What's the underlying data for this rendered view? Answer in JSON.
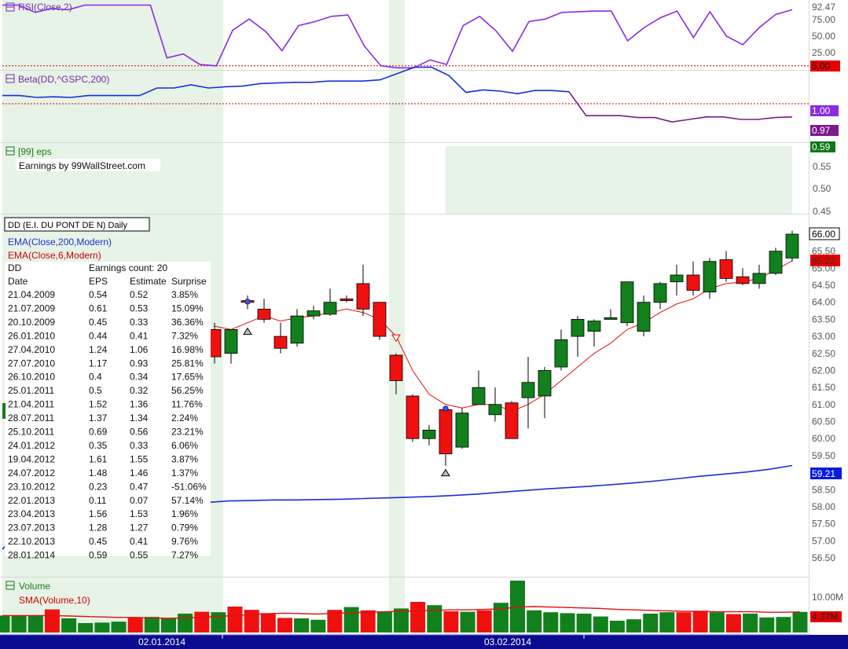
{
  "chart_data": {
    "type": "candlestick",
    "title": "DD (E.I. DU PONT DE N) Daily",
    "x_axis": {
      "labels": [
        "02.01.2014",
        "03.02.2014"
      ]
    },
    "bars": [
      {
        "o": 63.2,
        "h": 63.4,
        "l": 62.2,
        "c": 62.4
      },
      {
        "o": 62.5,
        "h": 63.2,
        "l": 62.2,
        "c": 63.2
      },
      {
        "o": 64.05,
        "h": 64.2,
        "l": 63.8,
        "c": 64.0
      },
      {
        "o": 63.8,
        "h": 64.1,
        "l": 63.4,
        "c": 63.5
      },
      {
        "o": 63.0,
        "h": 63.4,
        "l": 62.5,
        "c": 62.65
      },
      {
        "o": 62.8,
        "h": 63.8,
        "l": 62.7,
        "c": 63.6
      },
      {
        "o": 63.6,
        "h": 63.9,
        "l": 63.5,
        "c": 63.75
      },
      {
        "o": 63.65,
        "h": 64.4,
        "l": 63.6,
        "c": 64.0
      },
      {
        "o": 64.1,
        "h": 64.2,
        "l": 64.0,
        "c": 64.05
      },
      {
        "o": 64.55,
        "h": 65.1,
        "l": 63.6,
        "c": 63.8
      },
      {
        "o": 64.0,
        "h": 64.0,
        "l": 62.9,
        "c": 63.0
      },
      {
        "o": 62.45,
        "h": 62.5,
        "l": 61.3,
        "c": 61.7
      },
      {
        "o": 61.25,
        "h": 61.3,
        "l": 59.9,
        "c": 60.0
      },
      {
        "o": 60.0,
        "h": 60.4,
        "l": 59.8,
        "c": 60.25
      },
      {
        "o": 60.85,
        "h": 60.9,
        "l": 59.2,
        "c": 59.55
      },
      {
        "o": 59.75,
        "h": 60.9,
        "l": 59.7,
        "c": 60.75
      },
      {
        "o": 61.0,
        "h": 62.0,
        "l": 61.0,
        "c": 61.5
      },
      {
        "o": 60.7,
        "h": 61.5,
        "l": 60.5,
        "c": 61.0
      },
      {
        "o": 61.05,
        "h": 61.1,
        "l": 60.0,
        "c": 60.0
      },
      {
        "o": 61.2,
        "h": 62.4,
        "l": 60.3,
        "c": 61.65
      },
      {
        "o": 61.25,
        "h": 62.1,
        "l": 60.6,
        "c": 62.0
      },
      {
        "o": 62.1,
        "h": 63.2,
        "l": 62.0,
        "c": 62.9
      },
      {
        "o": 63.0,
        "h": 63.6,
        "l": 62.4,
        "c": 63.5
      },
      {
        "o": 63.15,
        "h": 63.5,
        "l": 62.7,
        "c": 63.45
      },
      {
        "o": 63.5,
        "h": 63.8,
        "l": 63.5,
        "c": 63.55
      },
      {
        "o": 63.4,
        "h": 64.6,
        "l": 63.3,
        "c": 64.6
      },
      {
        "o": 63.15,
        "h": 64.2,
        "l": 63.0,
        "c": 64.0
      },
      {
        "o": 64.0,
        "h": 64.6,
        "l": 63.8,
        "c": 64.55
      },
      {
        "o": 64.6,
        "h": 65.1,
        "l": 64.2,
        "c": 64.8
      },
      {
        "o": 64.8,
        "h": 65.2,
        "l": 64.2,
        "c": 64.35
      },
      {
        "o": 64.3,
        "h": 65.3,
        "l": 64.1,
        "c": 65.2
      },
      {
        "o": 65.25,
        "h": 65.5,
        "l": 64.6,
        "c": 64.7
      },
      {
        "o": 64.75,
        "h": 65.0,
        "l": 64.5,
        "c": 64.55
      },
      {
        "o": 64.55,
        "h": 65.1,
        "l": 64.4,
        "c": 64.85
      },
      {
        "o": 64.85,
        "h": 65.6,
        "l": 64.8,
        "c": 65.5
      },
      {
        "o": 65.3,
        "h": 66.1,
        "l": 65.2,
        "c": 66.0
      }
    ],
    "ema6": {
      "name": "EMA(Close,6,Modern)",
      "last": "65.22",
      "values": [
        63.3,
        63.2,
        63.4,
        63.6,
        63.45,
        63.55,
        63.6,
        63.7,
        63.8,
        63.7,
        63.5,
        63.0,
        62.0,
        61.3,
        61.0,
        60.9,
        61.0,
        61.0,
        60.8,
        61.0,
        61.3,
        61.7,
        62.1,
        62.5,
        62.8,
        63.2,
        63.4,
        63.7,
        63.95,
        64.1,
        64.4,
        64.55,
        64.6,
        64.7,
        64.95,
        65.22
      ]
    },
    "ema200": {
      "name": "EMA(Close,200,Modern)",
      "last": "59.21",
      "values": [
        56.75,
        57.5,
        57.62,
        57.72,
        57.8,
        57.88,
        57.95,
        58.02,
        58.08,
        58.12,
        58.17,
        58.18,
        58.2,
        58.2,
        58.21,
        58.22,
        58.24,
        58.26,
        58.28,
        58.3,
        58.33,
        58.37,
        58.42,
        58.47,
        58.52,
        58.56,
        58.6,
        58.65,
        58.7,
        58.76,
        58.83,
        58.9,
        58.96,
        59.02,
        59.1,
        59.21
      ]
    },
    "price_axis": {
      "min": 56.5,
      "max": 66.0,
      "ticks": [
        "56.50",
        "57.00",
        "57.50",
        "58.00",
        "58.50",
        "59.00",
        "59.50",
        "60.00",
        "60.50",
        "61.00",
        "61.50",
        "62.00",
        "62.50",
        "63.00",
        "63.50",
        "64.00",
        "64.50",
        "65.00",
        "65.50",
        "66.00"
      ],
      "last": "66.00"
    },
    "signals": [
      {
        "i": 2,
        "v": 64.02,
        "shape": "circle"
      },
      {
        "i": 2,
        "v": 63.15,
        "shape": "up"
      },
      {
        "i": 11,
        "v": 62.95,
        "shape": "down"
      },
      {
        "i": 14,
        "v": 60.88,
        "shape": "circle"
      },
      {
        "i": 14,
        "v": 59.0,
        "shape": "up"
      }
    ],
    "earnings_table": {
      "symbol": "DD",
      "count_label": "Earnings count: 20",
      "columns": [
        "Date",
        "EPS",
        "Estimate",
        "Surprise"
      ],
      "rows": [
        [
          "21.04.2009",
          "0.54",
          "0.52",
          "3.85%"
        ],
        [
          "21.07.2009",
          "0.61",
          "0.53",
          "15.09%"
        ],
        [
          "20.10.2009",
          "0.45",
          "0.33",
          "36.36%"
        ],
        [
          "26.01.2010",
          "0.44",
          "0.41",
          "7.32%"
        ],
        [
          "27.04.2010",
          "1.24",
          "1.06",
          "16.98%"
        ],
        [
          "27.07.2010",
          "1.17",
          "0.93",
          "25.81%"
        ],
        [
          "26.10.2010",
          "0.4",
          "0.34",
          "17.65%"
        ],
        [
          "25.01.2011",
          "0.5",
          "0.32",
          "56.25%"
        ],
        [
          "21.04.2011",
          "1.52",
          "1.36",
          "11.76%"
        ],
        [
          "28.07.2011",
          "1.37",
          "1.34",
          "2.24%"
        ],
        [
          "25.10.2011",
          "0.69",
          "0.56",
          "23.21%"
        ],
        [
          "24.01.2012",
          "0.35",
          "0.33",
          "6.06%"
        ],
        [
          "19.04.2012",
          "1.61",
          "1.55",
          "3.87%"
        ],
        [
          "24.07.2012",
          "1.48",
          "1.46",
          "1.37%"
        ],
        [
          "23.10.2012",
          "0.23",
          "0.47",
          "-51.06%"
        ],
        [
          "22.01.2013",
          "0.11",
          "0.07",
          "57.14%"
        ],
        [
          "23.04.2013",
          "1.56",
          "1.53",
          "1.96%"
        ],
        [
          "23.07.2013",
          "1.28",
          "1.27",
          "0.79%"
        ],
        [
          "22.10.2013",
          "0.45",
          "0.41",
          "9.76%"
        ],
        [
          "28.01.2014",
          "0.59",
          "0.55",
          "7.27%"
        ]
      ]
    },
    "rsi": {
      "name": "RSI(Close,2)",
      "last": "92.47",
      "level_label": "5.00",
      "level": 5,
      "min": 0,
      "max": 100,
      "ticks": [
        "25.00",
        "50.00",
        "75.00",
        "92.47"
      ],
      "values": [
        97,
        97,
        86,
        92,
        90,
        97,
        97,
        97,
        97,
        97,
        17,
        23,
        7,
        5,
        59,
        76,
        57,
        28,
        66,
        72,
        80,
        82,
        35,
        5,
        2,
        2,
        14,
        7,
        66,
        80,
        58,
        27,
        72,
        76,
        86,
        87,
        88,
        88,
        43,
        63,
        78,
        88,
        48,
        87,
        50,
        37,
        63,
        83,
        90
      ]
    },
    "beta": {
      "name": "Beta(DD,^GSPC,200)",
      "level_label": "1.00",
      "level": 1.0,
      "last": "0.97",
      "min": 0.94,
      "max": 1.05,
      "values": [
        1.013,
        1.013,
        1.01,
        1.011,
        1.01,
        1.013,
        1.013,
        1.013,
        1.013,
        1.025,
        1.025,
        1.03,
        1.025,
        1.027,
        1.028,
        1.032,
        1.033,
        1.034,
        1.034,
        1.036,
        1.036,
        1.036,
        1.038,
        1.048,
        1.058,
        1.058,
        1.045,
        1.018,
        1.022,
        1.02,
        1.016,
        1.021,
        1.021,
        1.019,
        0.981,
        0.981,
        0.981,
        0.978,
        0.978,
        0.971,
        0.975,
        0.979,
        0.979,
        0.975,
        0.975,
        0.978,
        0.979
      ],
      "split_index": 33
    },
    "eps": {
      "name": "[99] eps",
      "note": "Earnings by 99WallStreet.com",
      "last": "0.59",
      "ticks": [
        "0.55",
        "0.50",
        "0.45"
      ]
    },
    "legend": [
      "EMA(Close,200,Modern)",
      "EMA(Close,6,Modern)"
    ],
    "volume": {
      "name": "Volume",
      "sma_name": "SMA(Volume,10)",
      "tick": "10.00M",
      "last": "4.37M",
      "values": [
        3.6,
        3.6,
        3.5,
        4.9,
        3.0,
        2.0,
        2.1,
        2.3,
        3.2,
        3.3,
        3.1,
        4.0,
        4.4,
        4.3,
        5.5,
        4.8,
        4.1,
        3.1,
        3.0,
        2.7,
        4.8,
        5.4,
        4.7,
        4.4,
        5.1,
        6.5,
        5.8,
        4.5,
        4.4,
        4.7,
        6.3,
        11.0,
        4.7,
        4.3,
        4.1,
        4.0,
        3.4,
        2.5,
        2.8,
        4.0,
        4.3,
        4.3,
        4.6,
        4.3,
        3.9,
        4.0,
        3.2,
        3.3,
        4.37
      ],
      "sma": [
        3.6,
        3.6,
        3.6,
        3.6,
        3.5,
        3.4,
        3.3,
        3.2,
        3.2,
        3.1,
        3.0,
        3.1,
        3.2,
        3.4,
        3.6,
        3.8,
        4.0,
        4.1,
        4.0,
        3.9,
        4.1,
        4.2,
        4.3,
        4.4,
        4.5,
        4.6,
        4.7,
        4.8,
        4.8,
        4.9,
        5.0,
        5.4,
        5.5,
        5.4,
        5.3,
        5.2,
        5.1,
        4.9,
        4.8,
        4.7,
        4.6,
        4.5,
        4.5,
        4.4,
        4.4,
        4.4,
        4.3,
        4.3,
        4.37
      ]
    }
  }
}
